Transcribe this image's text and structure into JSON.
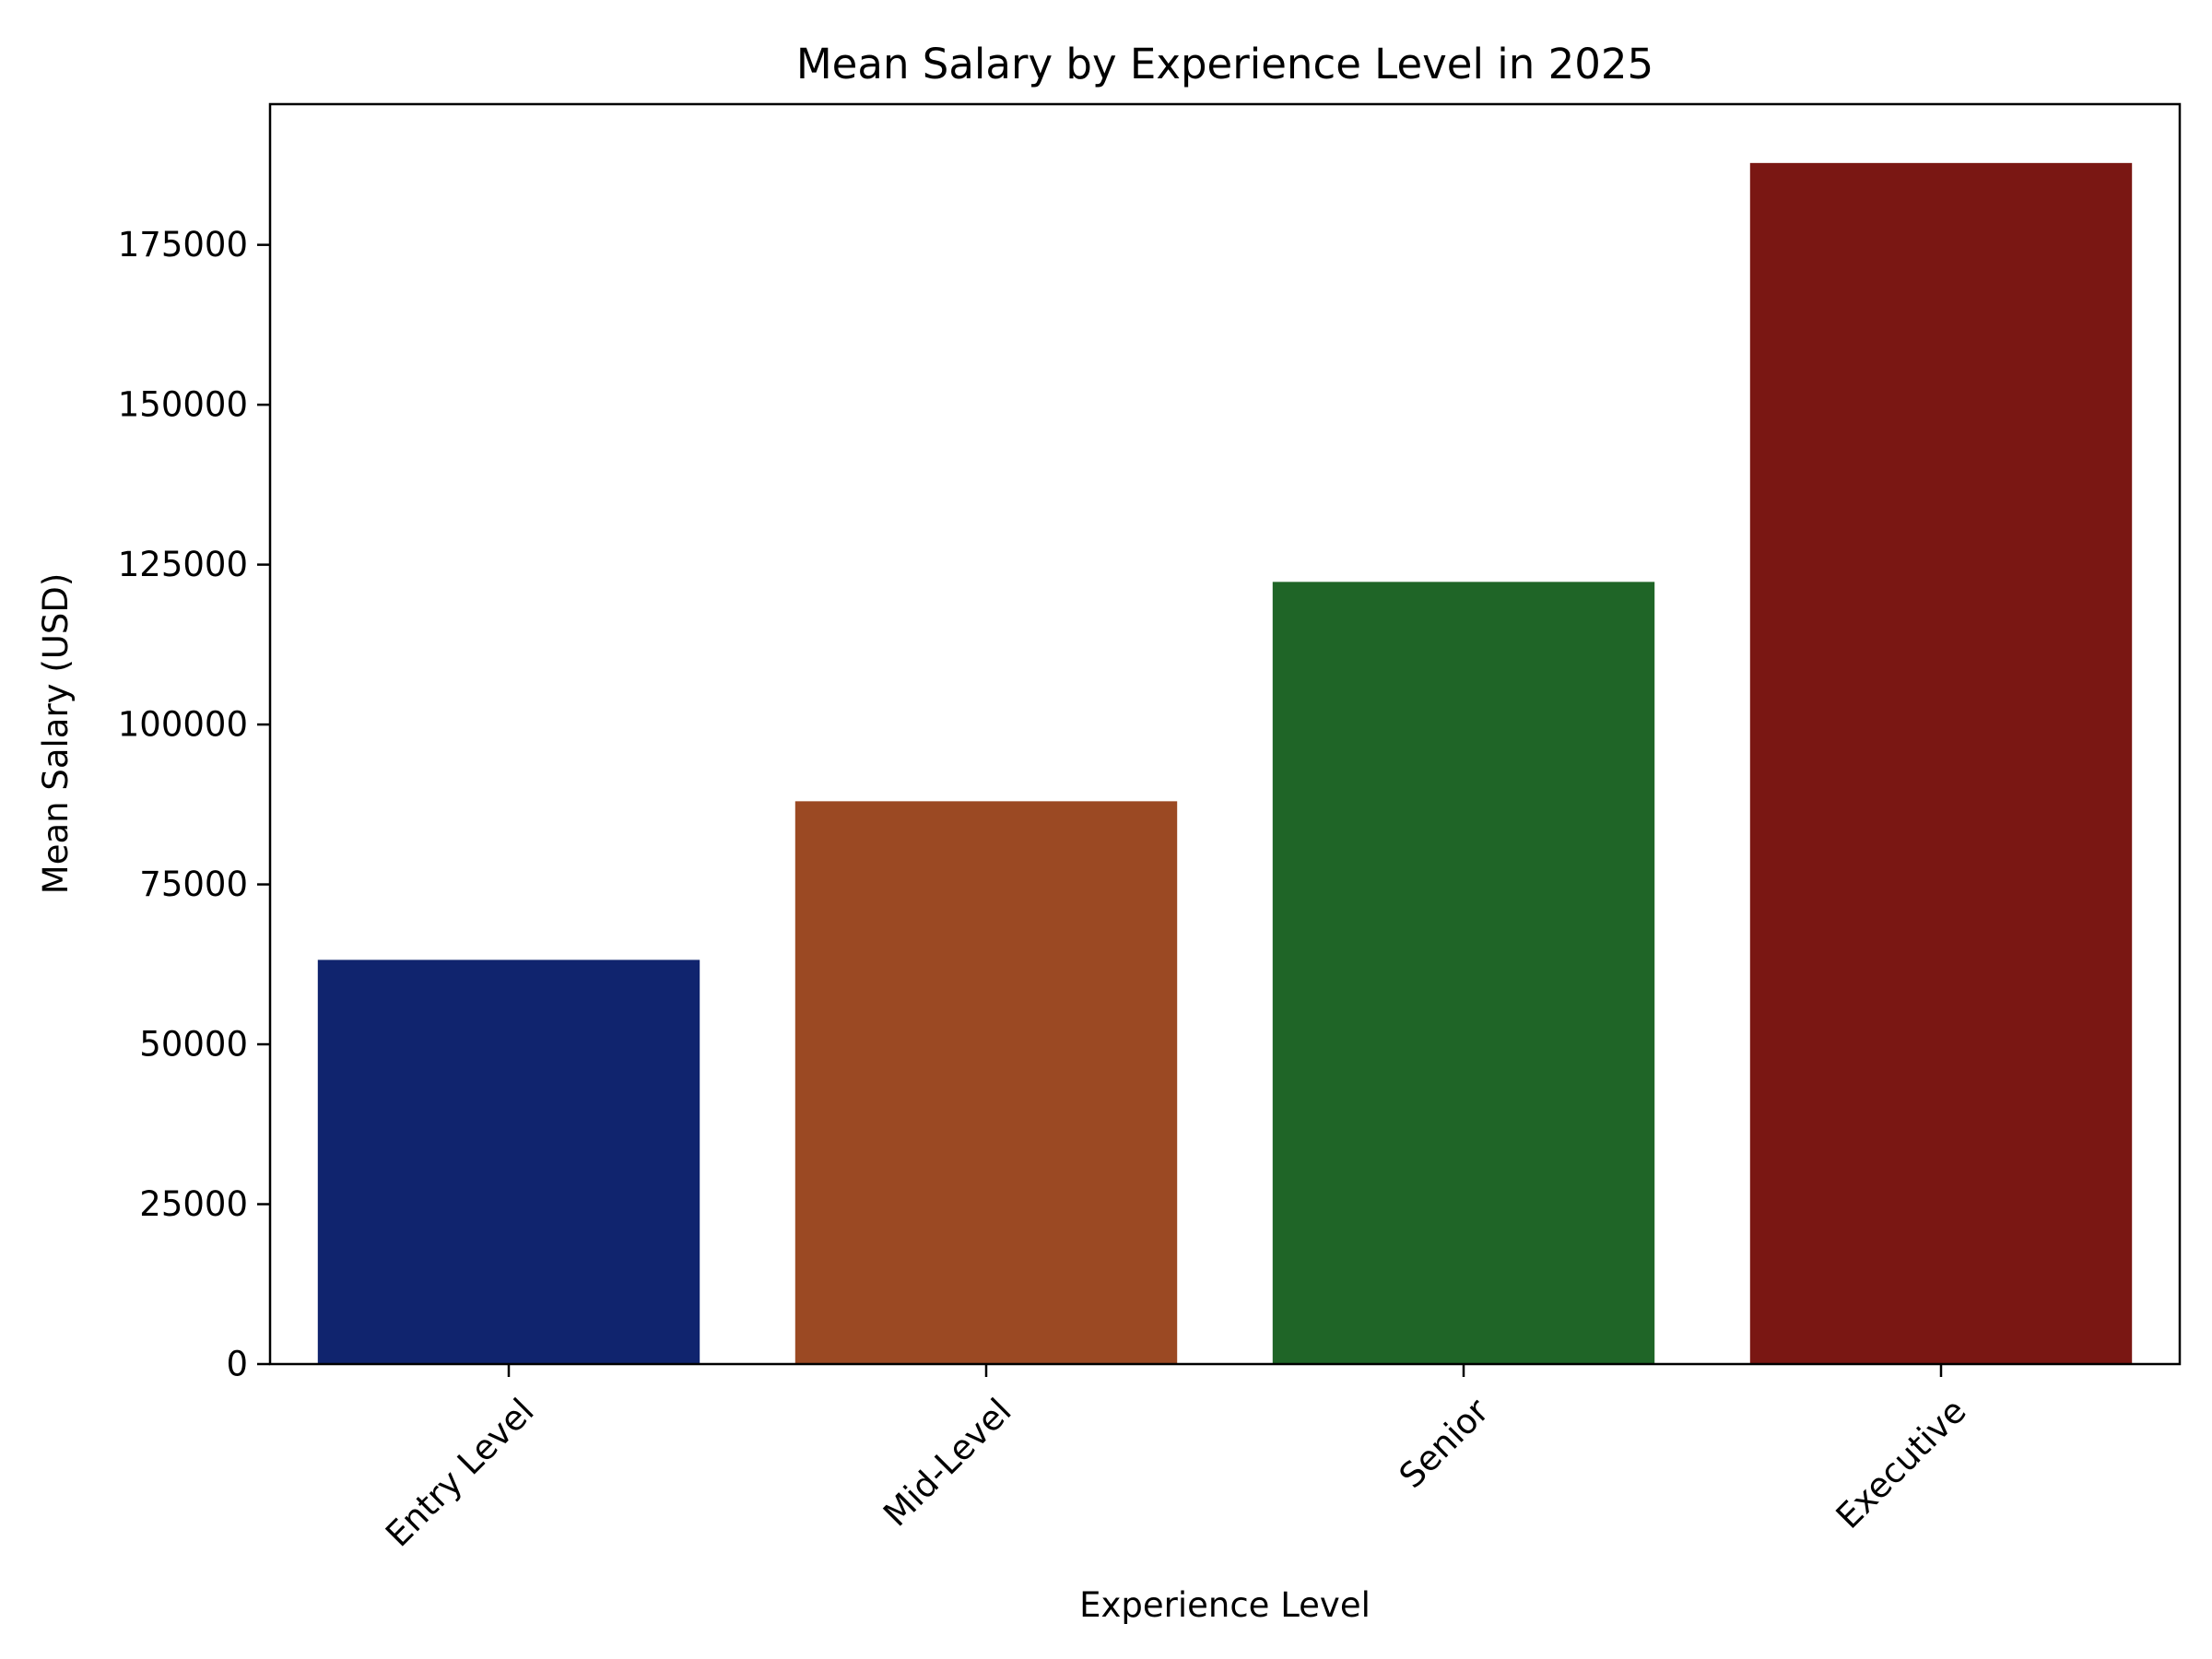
{
  "chart_data": {
    "type": "bar",
    "title": "Mean Salary by Experience Level in 2025",
    "xlabel": "Experience Level",
    "ylabel": "Mean Salary (USD)",
    "categories": [
      "Entry Level",
      "Mid-Level",
      "Senior",
      "Executive"
    ],
    "values": [
      63200,
      88000,
      122300,
      187800
    ],
    "colors": [
      "#10246e",
      "#9b4923",
      "#1f6527",
      "#7a1713"
    ],
    "ylim": [
      0,
      197000
    ],
    "yticks": [
      0,
      25000,
      50000,
      75000,
      100000,
      125000,
      150000,
      175000
    ],
    "ytick_labels": [
      "0",
      "25000",
      "50000",
      "75000",
      "100000",
      "125000",
      "150000",
      "175000"
    ],
    "grid": false,
    "legend": "none",
    "xtick_rotation_deg": 45
  }
}
